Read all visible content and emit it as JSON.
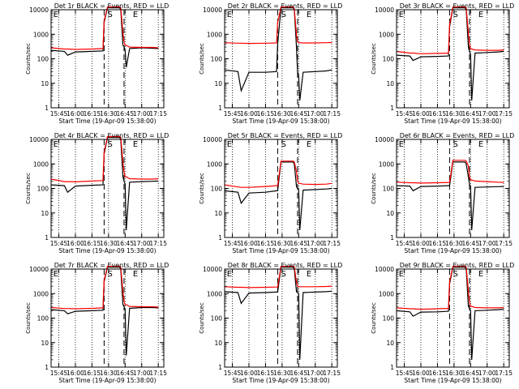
{
  "colors": {
    "events": "#000000",
    "lld": "#ff0000",
    "axis": "#000000"
  },
  "axes": {
    "xlabel": "Start Time (19-Apr-09 15:38:00)",
    "ylabel": "Counts/sec",
    "xticks": [
      "15:45",
      "16:00",
      "16:15",
      "16:30",
      "16:45",
      "17:00",
      "17:15"
    ],
    "yticks": [
      "1",
      "10",
      "100",
      "1000",
      "10000"
    ]
  },
  "chart_data": [
    {
      "type": "line",
      "title": "Det 1r BLACK = Events, RED = LLD",
      "markers": [
        "E",
        "S",
        "E"
      ],
      "xlabel": "Start Time (19-Apr-09 15:38:00)",
      "ylabel": "Counts/sec",
      "yscale": "log",
      "ylim": [
        1,
        10000
      ],
      "xlim": [
        "15:38",
        "17:20"
      ],
      "series": [
        {
          "x": [
            "15:38",
            "15:50",
            "15:53",
            "16:00",
            "16:15",
            "16:25",
            "16:26",
            "16:29",
            "16:40",
            "16:41",
            "16:43",
            "16:44",
            "16:45",
            "16:46",
            "16:49",
            "17:00",
            "17:10",
            "17:15"
          ],
          "values": [
            220,
            200,
            140,
            190,
            200,
            210,
            3000,
            12000,
            12000,
            10000,
            350,
            320,
            220,
            45,
            260,
            280,
            270,
            260
          ]
        },
        {
          "x": [
            "15:38",
            "15:50",
            "15:53",
            "16:00",
            "16:15",
            "16:25",
            "16:26",
            "16:29",
            "16:40",
            "16:41",
            "16:43",
            "16:44",
            "16:45",
            "16:46",
            "16:49",
            "17:00",
            "17:10",
            "17:15"
          ],
          "values": [
            280,
            250,
            250,
            240,
            250,
            260,
            3500,
            13000,
            13000,
            12000,
            1200,
            500,
            350,
            350,
            300,
            290,
            290,
            280
          ]
        }
      ]
    },
    {
      "type": "line",
      "title": "Det 2r BLACK = Events, RED = LLD",
      "markers": [
        "E",
        "S",
        "E"
      ],
      "xlabel": "Start Time (19-Apr-09 15:38:00)",
      "ylabel": "Counts/sec",
      "yscale": "log",
      "ylim": [
        1,
        10000
      ],
      "xlim": [
        "15:38",
        "17:20"
      ],
      "series": [
        {
          "x": [
            "15:38",
            "15:50",
            "15:53",
            "16:00",
            "16:15",
            "16:25",
            "16:26",
            "16:29",
            "16:40",
            "16:41",
            "16:43",
            "16:44",
            "16:45",
            "16:46",
            "16:49",
            "17:00",
            "17:10",
            "17:15"
          ],
          "values": [
            35,
            30,
            5,
            28,
            28,
            30,
            400,
            12000,
            12000,
            10000,
            300,
            30,
            20,
            2,
            28,
            30,
            32,
            35
          ]
        },
        {
          "x": [
            "15:38",
            "15:50",
            "15:53",
            "16:00",
            "16:15",
            "16:25",
            "16:26",
            "16:29",
            "16:40",
            "16:41",
            "16:43",
            "16:44",
            "16:45",
            "16:46",
            "16:49",
            "17:00",
            "17:10",
            "17:15"
          ],
          "values": [
            450,
            430,
            430,
            420,
            430,
            440,
            3000,
            13000,
            13000,
            11000,
            1000,
            500,
            450,
            450,
            440,
            440,
            450,
            460
          ]
        }
      ]
    },
    {
      "type": "line",
      "title": "Det 3r BLACK = Events, RED = LLD",
      "markers": [
        "E",
        "S",
        "E"
      ],
      "xlabel": "Start Time (19-Apr-09 15:38:00)",
      "ylabel": "Counts/sec",
      "yscale": "log",
      "ylim": [
        1,
        10000
      ],
      "xlim": [
        "15:38",
        "17:20"
      ],
      "series": [
        {
          "x": [
            "15:38",
            "15:50",
            "15:53",
            "16:00",
            "16:15",
            "16:25",
            "16:26",
            "16:29",
            "16:40",
            "16:41",
            "16:43",
            "16:44",
            "16:45",
            "16:46",
            "16:49",
            "17:00",
            "17:10",
            "17:15"
          ],
          "values": [
            140,
            130,
            85,
            120,
            125,
            130,
            2000,
            12000,
            12000,
            10000,
            300,
            200,
            150,
            2,
            170,
            180,
            190,
            200
          ]
        },
        {
          "x": [
            "15:38",
            "15:50",
            "15:53",
            "16:00",
            "16:15",
            "16:25",
            "16:26",
            "16:29",
            "16:40",
            "16:41",
            "16:43",
            "16:44",
            "16:45",
            "16:46",
            "16:49",
            "17:00",
            "17:10",
            "17:15"
          ],
          "values": [
            200,
            170,
            170,
            160,
            165,
            170,
            2500,
            13000,
            13000,
            12000,
            1100,
            400,
            250,
            250,
            230,
            220,
            220,
            230
          ]
        }
      ]
    },
    {
      "type": "line",
      "title": "Det 4r BLACK = Events, RED = LLD",
      "markers": [
        "E",
        "S",
        "E"
      ],
      "xlabel": "Start Time (19-Apr-09 15:38:00)",
      "ylabel": "Counts/sec",
      "yscale": "log",
      "ylim": [
        1,
        10000
      ],
      "xlim": [
        "15:38",
        "17:20"
      ],
      "series": [
        {
          "x": [
            "15:38",
            "15:50",
            "15:53",
            "16:00",
            "16:15",
            "16:25",
            "16:26",
            "16:29",
            "16:40",
            "16:41",
            "16:43",
            "16:44",
            "16:45",
            "16:46",
            "16:49",
            "17:00",
            "17:10",
            "17:15"
          ],
          "values": [
            140,
            130,
            70,
            125,
            135,
            140,
            2500,
            12000,
            12000,
            10000,
            300,
            200,
            150,
            2,
            180,
            190,
            195,
            200
          ]
        },
        {
          "x": [
            "15:38",
            "15:50",
            "15:53",
            "16:00",
            "16:15",
            "16:25",
            "16:26",
            "16:29",
            "16:40",
            "16:41",
            "16:43",
            "16:44",
            "16:45",
            "16:46",
            "16:49",
            "17:00",
            "17:10",
            "17:15"
          ],
          "values": [
            240,
            190,
            190,
            185,
            200,
            210,
            3000,
            13000,
            13000,
            12000,
            1200,
            500,
            300,
            300,
            250,
            240,
            240,
            250
          ]
        }
      ]
    },
    {
      "type": "line",
      "title": "Det 5r BLACK = Events, RED = LLD",
      "markers": [
        "E",
        "S",
        "E"
      ],
      "xlabel": "Start Time (19-Apr-09 15:38:00)",
      "ylabel": "Counts/sec",
      "yscale": "log",
      "ylim": [
        1,
        10000
      ],
      "xlim": [
        "15:38",
        "17:20"
      ],
      "series": [
        {
          "x": [
            "15:38",
            "15:50",
            "15:53",
            "16:00",
            "16:15",
            "16:25",
            "16:26",
            "16:29",
            "16:40",
            "16:41",
            "16:43",
            "16:44",
            "16:45",
            "16:46",
            "16:49",
            "17:00",
            "17:10",
            "17:15"
          ],
          "values": [
            80,
            70,
            25,
            65,
            70,
            80,
            80,
            1200,
            1200,
            1000,
            120,
            100,
            90,
            2,
            85,
            90,
            95,
            100
          ]
        },
        {
          "x": [
            "15:38",
            "15:50",
            "15:53",
            "16:00",
            "16:15",
            "16:25",
            "16:26",
            "16:29",
            "16:40",
            "16:41",
            "16:43",
            "16:44",
            "16:45",
            "16:46",
            "16:49",
            "17:00",
            "17:10",
            "17:15"
          ],
          "values": [
            140,
            115,
            110,
            110,
            120,
            130,
            130,
            1300,
            1300,
            1200,
            500,
            200,
            160,
            160,
            150,
            145,
            150,
            160
          ]
        }
      ]
    },
    {
      "type": "line",
      "title": "Det 6r BLACK = Events, RED = LLD",
      "markers": [
        "E",
        "S",
        "E"
      ],
      "xlabel": "Start Time (19-Apr-09 15:38:00)",
      "ylabel": "Counts/sec",
      "yscale": "log",
      "ylim": [
        1,
        10000
      ],
      "xlim": [
        "15:38",
        "17:20"
      ],
      "series": [
        {
          "x": [
            "15:38",
            "15:50",
            "15:53",
            "16:00",
            "16:15",
            "16:25",
            "16:26",
            "16:29",
            "16:40",
            "16:41",
            "16:43",
            "16:44",
            "16:45",
            "16:46",
            "16:49",
            "17:00",
            "17:10",
            "17:15"
          ],
          "values": [
            130,
            125,
            80,
            120,
            125,
            130,
            130,
            1200,
            1200,
            1000,
            300,
            150,
            120,
            2,
            110,
            115,
            118,
            120
          ]
        },
        {
          "x": [
            "15:38",
            "15:50",
            "15:53",
            "16:00",
            "16:15",
            "16:25",
            "16:26",
            "16:29",
            "16:40",
            "16:41",
            "16:43",
            "16:44",
            "16:45",
            "16:46",
            "16:49",
            "17:00",
            "17:10",
            "17:15"
          ],
          "values": [
            180,
            170,
            170,
            165,
            170,
            175,
            175,
            1400,
            1400,
            1300,
            800,
            300,
            220,
            220,
            200,
            190,
            180,
            175
          ]
        }
      ]
    },
    {
      "type": "line",
      "title": "Det 7r BLACK = Events, RED = LLD",
      "markers": [
        "E",
        "S",
        "E"
      ],
      "xlabel": "Start Time (19-Apr-09 15:38:00)",
      "ylabel": "Counts/sec",
      "yscale": "log",
      "ylim": [
        1,
        10000
      ],
      "xlim": [
        "15:38",
        "17:20"
      ],
      "series": [
        {
          "x": [
            "15:38",
            "15:50",
            "15:53",
            "16:00",
            "16:15",
            "16:25",
            "16:26",
            "16:29",
            "16:40",
            "16:41",
            "16:43",
            "16:44",
            "16:45",
            "16:46",
            "16:49",
            "17:00",
            "17:10",
            "17:15"
          ],
          "values": [
            220,
            200,
            150,
            190,
            200,
            210,
            3000,
            12000,
            12000,
            10000,
            350,
            300,
            220,
            3,
            250,
            270,
            270,
            260
          ]
        },
        {
          "x": [
            "15:38",
            "15:50",
            "15:53",
            "16:00",
            "16:15",
            "16:25",
            "16:26",
            "16:29",
            "16:40",
            "16:41",
            "16:43",
            "16:44",
            "16:45",
            "16:46",
            "16:49",
            "17:00",
            "17:10",
            "17:15"
          ],
          "values": [
            270,
            245,
            245,
            240,
            250,
            260,
            3500,
            13000,
            13000,
            12000,
            1200,
            500,
            350,
            350,
            300,
            290,
            290,
            280
          ]
        }
      ]
    },
    {
      "type": "line",
      "title": "Det 8r BLACK = Events, RED = LLD",
      "markers": [
        "E",
        "S",
        "E"
      ],
      "xlabel": "Start Time (19-Apr-09 15:38:00)",
      "ylabel": "Counts/sec",
      "yscale": "log",
      "ylim": [
        1,
        10000
      ],
      "xlim": [
        "15:38",
        "17:20"
      ],
      "series": [
        {
          "x": [
            "15:38",
            "15:50",
            "15:53",
            "16:00",
            "16:15",
            "16:25",
            "16:26",
            "16:29",
            "16:40",
            "16:41",
            "16:43",
            "16:44",
            "16:45",
            "16:46",
            "16:49",
            "17:00",
            "17:10",
            "17:15"
          ],
          "values": [
            1200,
            1100,
            400,
            1050,
            1100,
            1150,
            1150,
            12000,
            12000,
            10000,
            1200,
            1100,
            1000,
            2,
            1100,
            1150,
            1200,
            1250
          ]
        },
        {
          "x": [
            "15:38",
            "15:50",
            "15:53",
            "16:00",
            "16:15",
            "16:25",
            "16:26",
            "16:29",
            "16:40",
            "16:41",
            "16:43",
            "16:44",
            "16:45",
            "16:46",
            "16:49",
            "17:00",
            "17:10",
            "17:15"
          ],
          "values": [
            1900,
            1800,
            1800,
            1750,
            1800,
            1850,
            1850,
            13000,
            13000,
            12000,
            3000,
            2000,
            1900,
            1900,
            1900,
            1900,
            1950,
            2000
          ]
        }
      ]
    },
    {
      "type": "line",
      "title": "Det 9r BLACK = Events, RED = LLD",
      "markers": [
        "E",
        "S",
        "E"
      ],
      "xlabel": "Start Time (19-Apr-09 15:38:00)",
      "ylabel": "Counts/sec",
      "yscale": "log",
      "ylim": [
        1,
        10000
      ],
      "xlim": [
        "15:38",
        "17:20"
      ],
      "series": [
        {
          "x": [
            "15:38",
            "15:50",
            "15:53",
            "16:00",
            "16:15",
            "16:25",
            "16:26",
            "16:29",
            "16:40",
            "16:41",
            "16:43",
            "16:44",
            "16:45",
            "16:46",
            "16:49",
            "17:00",
            "17:10",
            "17:15"
          ],
          "values": [
            200,
            180,
            120,
            175,
            180,
            190,
            2500,
            12000,
            12000,
            10000,
            300,
            250,
            200,
            2,
            200,
            210,
            220,
            230
          ]
        },
        {
          "x": [
            "15:38",
            "15:50",
            "15:53",
            "16:00",
            "16:15",
            "16:25",
            "16:26",
            "16:29",
            "16:40",
            "16:41",
            "16:43",
            "16:44",
            "16:45",
            "16:46",
            "16:49",
            "17:00",
            "17:10",
            "17:15"
          ],
          "values": [
            260,
            240,
            240,
            230,
            240,
            250,
            3000,
            13000,
            13000,
            12000,
            1200,
            450,
            300,
            300,
            270,
            260,
            260,
            270
          ]
        }
      ]
    }
  ]
}
